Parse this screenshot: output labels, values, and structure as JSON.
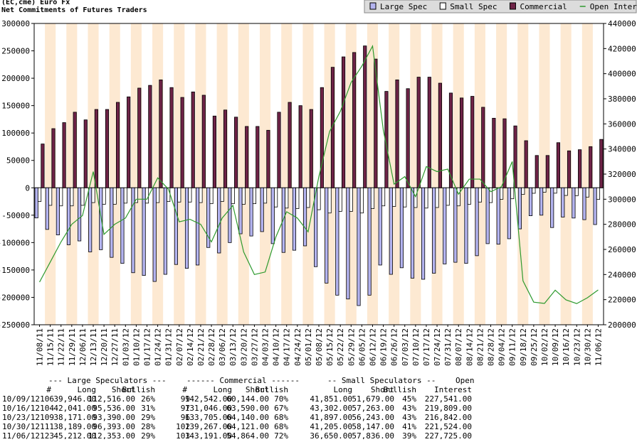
{
  "chart_data": {
    "type": "bar",
    "title": "(EC,cme) Euro Fx",
    "subtitle": "Net Commitments of Futures Traders",
    "categories": [
      "11/08/11",
      "11/15/11",
      "11/22/11",
      "11/29/11",
      "12/06/11",
      "12/13/11",
      "12/20/11",
      "12/27/11",
      "01/03/12",
      "01/10/12",
      "01/17/12",
      "01/24/12",
      "01/31/12",
      "02/07/12",
      "02/14/12",
      "02/21/12",
      "02/28/12",
      "03/06/12",
      "03/13/12",
      "03/20/12",
      "03/27/12",
      "04/03/12",
      "04/10/12",
      "04/17/12",
      "04/24/12",
      "05/01/12",
      "05/08/12",
      "05/15/12",
      "05/22/12",
      "05/29/12",
      "06/05/12",
      "06/12/12",
      "06/19/12",
      "06/26/12",
      "07/03/12",
      "07/10/12",
      "07/17/12",
      "07/24/12",
      "07/31/12",
      "08/07/12",
      "08/14/12",
      "08/21/12",
      "08/28/12",
      "09/04/12",
      "09/11/12",
      "09/18/12",
      "09/25/12",
      "10/02/12",
      "10/09/12",
      "10/16/12",
      "10/23/12",
      "10/30/12",
      "11/06/12"
    ],
    "series": [
      {
        "name": "Large Spec",
        "color": "#b4b4f0",
        "values": [
          -55000,
          -76000,
          -86000,
          -104000,
          -97000,
          -117000,
          -113000,
          -127000,
          -138000,
          -155000,
          -160000,
          -171000,
          -158000,
          -140000,
          -147000,
          -141000,
          -109000,
          -119000,
          -100000,
          -84000,
          -88000,
          -80000,
          -102000,
          -118000,
          -114000,
          -106000,
          -144000,
          -174000,
          -196000,
          -203000,
          -215000,
          -196000,
          -141000,
          -158000,
          -146000,
          -165000,
          -167000,
          -156000,
          -139000,
          -136000,
          -138000,
          -124000,
          -102000,
          -103000,
          -93000,
          -75000,
          -51000,
          -50000,
          -72570,
          -53495,
          -55219,
          -58204,
          -67141
        ]
      },
      {
        "name": "Small Spec",
        "color": "#ffffff",
        "values": [
          -25000,
          -32000,
          -33000,
          -33000,
          -32000,
          -27000,
          -30000,
          -30000,
          -28000,
          -27000,
          -28000,
          -27000,
          -25000,
          -26000,
          -26000,
          -27000,
          -29000,
          -25000,
          -29000,
          -30000,
          -29000,
          -28000,
          -35000,
          -37000,
          -38000,
          -36000,
          -40000,
          -46000,
          -43000,
          -43000,
          -46000,
          -38000,
          -33000,
          -34000,
          -35000,
          -36000,
          -37000,
          -36000,
          -32000,
          -33000,
          -30000,
          -26000,
          -27000,
          -21000,
          -20000,
          -12000,
          -10000,
          -8000,
          -9828,
          -13961,
          -14346,
          -16942,
          -21186
        ]
      },
      {
        "name": "Commercial",
        "color": "#6e2347",
        "values": [
          80000,
          108000,
          119000,
          138000,
          124000,
          143000,
          143000,
          156000,
          166000,
          182000,
          187000,
          197000,
          183000,
          165000,
          175000,
          169000,
          131000,
          142000,
          129000,
          112000,
          112000,
          105000,
          138000,
          156000,
          150000,
          143000,
          183000,
          220000,
          239000,
          247000,
          259000,
          235000,
          176000,
          197000,
          181000,
          202000,
          202000,
          191000,
          173000,
          164000,
          167000,
          147000,
          127000,
          126000,
          113000,
          86000,
          59000,
          59000,
          82398,
          67456,
          69565,
          75146,
          88327
        ]
      },
      {
        "name": "Open Interest",
        "type": "line",
        "axis": "y2",
        "color": "#2e9a2e",
        "values": [
          234000,
          250000,
          266000,
          280000,
          287000,
          322000,
          272000,
          280000,
          285000,
          300000,
          300000,
          317000,
          308000,
          282000,
          284000,
          280000,
          266000,
          285000,
          295000,
          258000,
          240000,
          242000,
          270000,
          290000,
          285000,
          274000,
          318000,
          354000,
          370000,
          393000,
          406000,
          422000,
          355000,
          312000,
          318000,
          302000,
          326000,
          322000,
          324000,
          304000,
          316000,
          316000,
          306000,
          310000,
          330000,
          235000,
          218000,
          217000,
          227541,
          219809,
          216842,
          221524,
          227725
        ]
      }
    ],
    "ylim": [
      -250000,
      300000
    ],
    "yticks": [
      -250000,
      -200000,
      -150000,
      -100000,
      -50000,
      0,
      50000,
      100000,
      150000,
      200000,
      250000,
      300000
    ],
    "y2lim": [
      200000,
      440000
    ],
    "y2ticks": [
      200000,
      220000,
      240000,
      260000,
      280000,
      300000,
      320000,
      340000,
      360000,
      380000,
      400000,
      420000,
      440000
    ],
    "band_color": "#fde9d2"
  },
  "table": {
    "header": [
      "--- Large Speculators ---",
      "------ Commercial ------",
      "-- Small Speculators --",
      "Open"
    ],
    "columns": [
      "#",
      "Long",
      "Short",
      "Bullish",
      "#",
      "Long",
      "Short",
      "Bullish",
      "Long",
      "Short",
      "Bullish",
      "Interest"
    ],
    "rows": [
      [
        "10/09/12",
        "106",
        "39,946.00",
        "112,516.00",
        "26%",
        "99",
        "142,542.00",
        "60,144.00",
        "70%",
        "41,851.00",
        "51,679.00",
        "45%",
        "227,541.00"
      ],
      [
        "10/16/12",
        "104",
        "42,041.00",
        "95,536.00",
        "31%",
        "97",
        "131,046.00",
        "63,590.00",
        "67%",
        "43,302.00",
        "57,263.00",
        "43%",
        "219,809.00"
      ],
      [
        "10/23/12",
        "109",
        "38,171.00",
        "93,390.00",
        "29%",
        "96",
        "133,705.00",
        "64,140.00",
        "68%",
        "41,897.00",
        "56,243.00",
        "43%",
        "216,842.00"
      ],
      [
        "10/30/12",
        "111",
        "38,189.00",
        "96,393.00",
        "28%",
        "102",
        "139,267.00",
        "64,121.00",
        "68%",
        "41,205.00",
        "58,147.00",
        "41%",
        "221,524.00"
      ],
      [
        "11/06/12",
        "123",
        "45,212.00",
        "112,353.00",
        "29%",
        "103",
        "143,191.00",
        "54,864.00",
        "72%",
        "36,650.00",
        "57,836.00",
        "39%",
        "227,725.00"
      ]
    ]
  }
}
